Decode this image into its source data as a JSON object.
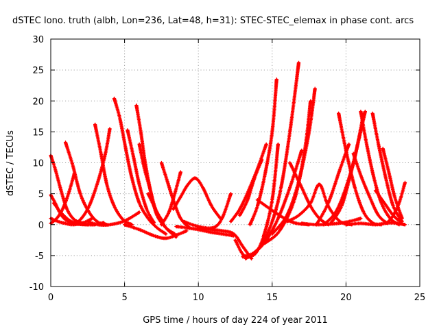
{
  "chart_data": {
    "type": "scatter",
    "title": "dSTEC Iono. truth (albh, Lon=236, Lat=48, h=31): STEC-STEC_elemax in phase cont. arcs",
    "xlabel": "GPS time / hours of day 224 of year 2011",
    "ylabel": "dSTEC  / TECUs",
    "xlim": [
      0,
      25
    ],
    "ylim": [
      -10,
      30
    ],
    "xticks": [
      0,
      5,
      10,
      15,
      20,
      25
    ],
    "yticks": [
      -10,
      -5,
      0,
      5,
      10,
      15,
      20,
      25,
      30
    ],
    "grid": true,
    "marker": "plus",
    "color": "#ff0000",
    "series": [
      {
        "x": [
          0.0,
          0.3,
          0.7,
          1.1,
          1.6,
          2.2
        ],
        "y": [
          11.2,
          9.0,
          5.5,
          2.5,
          0.8,
          0.2
        ]
      },
      {
        "x": [
          0.0,
          0.3,
          0.6,
          0.9,
          1.3,
          1.8,
          2.4,
          3.0
        ],
        "y": [
          4.8,
          3.5,
          2.0,
          1.0,
          0.4,
          0.1,
          0.0,
          0.0
        ]
      },
      {
        "x": [
          0.0,
          0.4,
          0.8,
          1.2,
          1.6
        ],
        "y": [
          0.2,
          1.0,
          2.5,
          5.0,
          8.3
        ]
      },
      {
        "x": [
          0.0,
          0.5,
          1.0,
          1.5,
          2.2,
          2.8
        ],
        "y": [
          1.0,
          0.5,
          0.2,
          0.0,
          0.3,
          1.0
        ]
      },
      {
        "x": [
          1.0,
          1.5,
          2.0,
          2.6,
          3.2,
          3.8
        ],
        "y": [
          13.3,
          9.5,
          5.0,
          2.0,
          0.4,
          0.0
        ]
      },
      {
        "x": [
          0.2,
          0.6,
          1.0,
          1.4,
          2.0,
          2.8,
          3.6
        ],
        "y": [
          3.5,
          2.2,
          1.2,
          0.5,
          0.1,
          0.0,
          0.3
        ]
      },
      {
        "x": [
          1.5,
          2.0,
          2.6,
          3.2,
          3.7,
          4.0
        ],
        "y": [
          0.1,
          0.8,
          3.0,
          7.0,
          11.5,
          15.5
        ]
      },
      {
        "x": [
          3.0,
          3.4,
          3.8,
          4.3,
          4.9,
          5.5
        ],
        "y": [
          16.2,
          11.5,
          6.5,
          3.0,
          0.8,
          0.0
        ]
      },
      {
        "x": [
          2.5,
          3.2,
          4.0,
          5.0,
          6.0
        ],
        "y": [
          0.5,
          0.0,
          0.0,
          0.6,
          2.0
        ]
      },
      {
        "x": [
          4.3,
          4.7,
          5.1,
          5.5,
          6.0,
          6.6,
          7.2,
          7.8
        ],
        "y": [
          20.4,
          17.0,
          12.0,
          7.5,
          3.5,
          1.0,
          -0.5,
          -1.5
        ]
      },
      {
        "x": [
          5.2,
          5.6,
          6.0,
          6.5,
          7.0
        ],
        "y": [
          15.3,
          11.0,
          6.5,
          2.5,
          0.3
        ]
      },
      {
        "x": [
          5.8,
          6.1,
          6.4,
          6.8,
          7.2,
          7.8,
          8.4
        ],
        "y": [
          19.3,
          15.0,
          10.0,
          5.0,
          1.5,
          -0.5,
          -1.5
        ]
      },
      {
        "x": [
          6.0,
          6.3,
          6.7,
          7.1,
          7.6
        ],
        "y": [
          13.0,
          9.5,
          6.0,
          2.5,
          0.5
        ]
      },
      {
        "x": [
          6.6,
          7.2,
          7.8,
          8.5
        ],
        "y": [
          5.0,
          2.0,
          -0.5,
          -2.0
        ]
      },
      {
        "x": [
          5.0,
          6.0,
          7.0,
          7.8,
          8.6,
          9.2
        ],
        "y": [
          0.0,
          -0.8,
          -1.8,
          -2.2,
          -1.6,
          -1.0
        ]
      },
      {
        "x": [
          7.5,
          7.9,
          8.3,
          8.8,
          9.4
        ],
        "y": [
          10.0,
          7.0,
          4.0,
          1.0,
          -0.5
        ]
      },
      {
        "x": [
          7.5,
          8.0,
          8.4,
          8.8
        ],
        "y": [
          0.0,
          2.0,
          5.0,
          8.5
        ]
      },
      {
        "x": [
          8.3,
          8.8,
          9.3,
          9.8,
          10.3,
          10.9,
          11.5
        ],
        "y": [
          2.5,
          4.5,
          6.5,
          7.5,
          6.0,
          3.0,
          1.0
        ]
      },
      {
        "x": [
          8.5,
          9.2,
          10.0,
          10.8,
          11.6,
          12.4
        ],
        "y": [
          -0.3,
          -0.5,
          -0.8,
          -1.2,
          -1.5,
          -1.8
        ]
      },
      {
        "x": [
          9.0,
          10.0,
          11.0,
          11.6,
          12.2
        ],
        "y": [
          0.5,
          -0.3,
          -0.5,
          1.0,
          5.0
        ]
      },
      {
        "x": [
          10.0,
          10.8,
          11.6,
          12.4,
          13.0,
          13.6
        ],
        "y": [
          -0.5,
          -0.8,
          -1.0,
          -1.5,
          -3.5,
          -5.5
        ]
      },
      {
        "x": [
          12.2,
          12.8,
          13.4,
          14.0,
          14.6
        ],
        "y": [
          0.5,
          2.5,
          5.5,
          9.0,
          13.0
        ]
      },
      {
        "x": [
          12.5,
          13.1,
          13.8,
          14.4,
          15.0,
          15.4
        ],
        "y": [
          -2.5,
          -5.0,
          -4.8,
          -2.0,
          4.0,
          13.0
        ]
      },
      {
        "x": [
          12.8,
          13.3,
          13.8,
          14.3
        ],
        "y": [
          1.5,
          3.8,
          7.5,
          10.5
        ]
      },
      {
        "x": [
          13.0,
          13.8,
          14.6,
          15.4,
          16.2,
          17.0
        ],
        "y": [
          -5.2,
          -4.5,
          -2.5,
          1.0,
          6.0,
          12.0
        ]
      },
      {
        "x": [
          13.2,
          14.2,
          15.0,
          15.6,
          16.2,
          16.8
        ],
        "y": [
          -5.5,
          -3.5,
          0.5,
          6.0,
          15.0,
          26.2
        ]
      },
      {
        "x": [
          13.5,
          14.0,
          14.5,
          15.0,
          15.3
        ],
        "y": [
          0.0,
          3.0,
          8.0,
          15.0,
          23.5
        ]
      },
      {
        "x": [
          14.5,
          15.5,
          16.5,
          17.2,
          17.6
        ],
        "y": [
          -3.0,
          -1.0,
          4.0,
          12.0,
          20.0
        ]
      },
      {
        "x": [
          15.0,
          16.0,
          16.8,
          17.5,
          17.9
        ],
        "y": [
          -1.5,
          1.5,
          7.0,
          15.0,
          22.0
        ]
      },
      {
        "x": [
          14.0,
          15.5,
          16.5,
          17.5
        ],
        "y": [
          4.0,
          1.5,
          0.3,
          0.0
        ]
      },
      {
        "x": [
          16.0,
          16.8,
          17.6,
          18.2,
          18.8,
          19.6,
          20.4
        ],
        "y": [
          0.5,
          1.5,
          3.5,
          6.5,
          3.0,
          0.5,
          0.0
        ]
      },
      {
        "x": [
          17.0,
          18.0,
          19.0,
          20.0,
          21.0
        ],
        "y": [
          0.2,
          0.0,
          0.1,
          0.4,
          1.0
        ]
      },
      {
        "x": [
          16.2,
          17.0,
          17.6,
          18.2,
          18.8
        ],
        "y": [
          10.0,
          6.0,
          3.0,
          1.0,
          0.0
        ]
      },
      {
        "x": [
          18.0,
          18.8,
          19.6,
          20.2
        ],
        "y": [
          0.0,
          3.5,
          9.0,
          13.0
        ]
      },
      {
        "x": [
          18.5,
          19.3,
          20.0,
          20.6,
          21.2
        ],
        "y": [
          0.0,
          2.0,
          6.0,
          11.0,
          18.0
        ]
      },
      {
        "x": [
          19.0,
          19.7,
          20.3,
          20.8,
          21.3
        ],
        "y": [
          0.3,
          3.0,
          8.0,
          13.0,
          18.3
        ]
      },
      {
        "x": [
          19.5,
          20.0,
          20.6,
          21.2,
          21.8,
          22.4
        ],
        "y": [
          18.0,
          12.0,
          6.0,
          2.0,
          0.3,
          0.0
        ]
      },
      {
        "x": [
          21.0,
          21.4,
          21.9,
          22.4,
          23.0,
          23.6
        ],
        "y": [
          18.3,
          13.0,
          7.5,
          3.5,
          1.0,
          0.0
        ]
      },
      {
        "x": [
          20.5,
          21.0,
          21.6,
          22.2,
          22.8
        ],
        "y": [
          11.5,
          8.0,
          4.5,
          1.5,
          0.2
        ]
      },
      {
        "x": [
          21.8,
          22.2,
          22.7,
          23.2,
          23.8
        ],
        "y": [
          18.0,
          13.0,
          7.5,
          3.0,
          0.5
        ]
      },
      {
        "x": [
          22.5,
          22.9,
          23.3,
          23.8
        ],
        "y": [
          12.3,
          8.5,
          4.5,
          1.0
        ]
      },
      {
        "x": [
          20.0,
          21.0,
          22.0,
          23.0,
          24.0
        ],
        "y": [
          0.0,
          0.2,
          0.0,
          0.3,
          0.0
        ]
      },
      {
        "x": [
          22.8,
          23.2,
          23.6,
          24.0
        ],
        "y": [
          0.3,
          1.5,
          3.5,
          6.8
        ]
      },
      {
        "x": [
          22.0,
          22.6,
          23.2,
          23.8
        ],
        "y": [
          5.5,
          3.5,
          1.5,
          0.2
        ]
      }
    ]
  }
}
